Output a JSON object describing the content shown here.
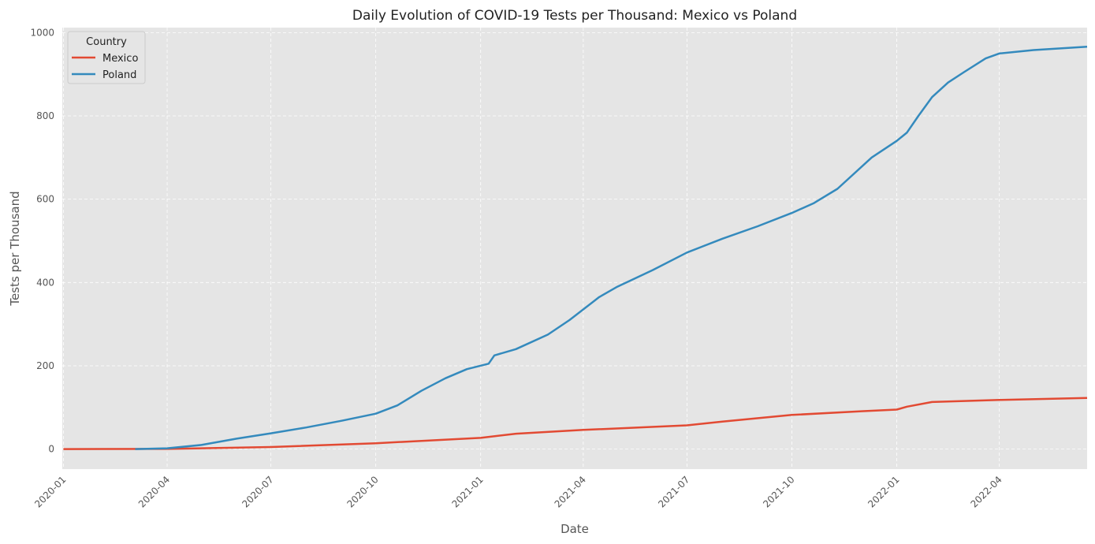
{
  "chart_data": {
    "type": "line",
    "title": "Daily Evolution of COVID-19 Tests per Thousand: Mexico vs Poland",
    "xlabel": "Date",
    "ylabel": "Tests per Thousand",
    "xlim": [
      "2019-12-31",
      "2022-06-17"
    ],
    "ylim": [
      -48,
      1012
    ],
    "xticks": [
      "2020-01",
      "2020-04",
      "2020-07",
      "2020-10",
      "2021-01",
      "2021-04",
      "2021-07",
      "2021-10",
      "2022-01",
      "2022-04"
    ],
    "yticks": [
      0,
      200,
      400,
      600,
      800,
      1000
    ],
    "grid": true,
    "legend": {
      "title": "Country",
      "placement": "top-left"
    },
    "series": [
      {
        "name": "Mexico",
        "color": "#e24a33",
        "points": [
          [
            "2020-01-01",
            0
          ],
          [
            "2020-04-01",
            0.5
          ],
          [
            "2020-07-01",
            5
          ],
          [
            "2020-10-01",
            14
          ],
          [
            "2021-01-01",
            27
          ],
          [
            "2021-02-01",
            37
          ],
          [
            "2021-04-01",
            46
          ],
          [
            "2021-07-01",
            57
          ],
          [
            "2021-08-01",
            66
          ],
          [
            "2021-10-01",
            82
          ],
          [
            "2021-12-01",
            91
          ],
          [
            "2022-01-01",
            95
          ],
          [
            "2022-01-10",
            102
          ],
          [
            "2022-02-01",
            113
          ],
          [
            "2022-04-01",
            118
          ],
          [
            "2022-06-17",
            123
          ]
        ]
      },
      {
        "name": "Poland",
        "color": "#348abd",
        "points": [
          [
            "2020-03-04",
            0
          ],
          [
            "2020-04-01",
            2
          ],
          [
            "2020-05-01",
            10
          ],
          [
            "2020-06-01",
            25
          ],
          [
            "2020-07-01",
            38
          ],
          [
            "2020-08-01",
            52
          ],
          [
            "2020-09-01",
            68
          ],
          [
            "2020-10-01",
            85
          ],
          [
            "2020-10-20",
            105
          ],
          [
            "2020-11-10",
            140
          ],
          [
            "2020-12-01",
            170
          ],
          [
            "2020-12-20",
            192
          ],
          [
            "2021-01-08",
            205
          ],
          [
            "2021-01-13",
            225
          ],
          [
            "2021-02-01",
            240
          ],
          [
            "2021-03-01",
            275
          ],
          [
            "2021-03-20",
            310
          ],
          [
            "2021-04-15",
            365
          ],
          [
            "2021-05-01",
            390
          ],
          [
            "2021-06-01",
            430
          ],
          [
            "2021-07-01",
            472
          ],
          [
            "2021-08-01",
            505
          ],
          [
            "2021-09-01",
            535
          ],
          [
            "2021-10-01",
            567
          ],
          [
            "2021-10-20",
            590
          ],
          [
            "2021-11-10",
            625
          ],
          [
            "2021-12-10",
            700
          ],
          [
            "2022-01-01",
            740
          ],
          [
            "2022-01-10",
            760
          ],
          [
            "2022-01-20",
            800
          ],
          [
            "2022-02-01",
            845
          ],
          [
            "2022-02-15",
            880
          ],
          [
            "2022-03-01",
            905
          ],
          [
            "2022-03-20",
            938
          ],
          [
            "2022-04-01",
            950
          ],
          [
            "2022-05-01",
            958
          ],
          [
            "2022-06-17",
            966
          ]
        ]
      }
    ]
  }
}
